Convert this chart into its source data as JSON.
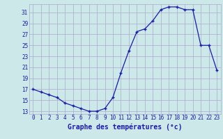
{
  "hours": [
    0,
    1,
    2,
    3,
    4,
    5,
    6,
    7,
    8,
    9,
    10,
    11,
    12,
    13,
    14,
    15,
    16,
    17,
    18,
    19,
    20,
    21,
    22,
    23
  ],
  "temperatures": [
    17,
    16.5,
    16,
    15.5,
    14.5,
    14,
    13.5,
    13,
    13,
    13.5,
    15.5,
    20,
    24,
    27.5,
    28,
    29.5,
    31.5,
    32,
    32,
    31.5,
    31.5,
    25,
    25,
    20.5
  ],
  "line_color": "#1a1aaa",
  "marker": "+",
  "bg_color": "#cce8e8",
  "grid_color": "#aaaacc",
  "xlabel": "Graphe des températures (°c)",
  "xlabel_color": "#1a1aaa",
  "ylim": [
    12.5,
    32.5
  ],
  "yticks": [
    13,
    15,
    17,
    19,
    21,
    23,
    25,
    27,
    29,
    31
  ],
  "xticks": [
    0,
    1,
    2,
    3,
    4,
    5,
    6,
    7,
    8,
    9,
    10,
    11,
    12,
    13,
    14,
    15,
    16,
    17,
    18,
    19,
    20,
    21,
    22,
    23
  ],
  "tick_fontsize": 5.5,
  "label_fontsize": 7,
  "fig_width": 3.2,
  "fig_height": 2.0,
  "dpi": 100
}
